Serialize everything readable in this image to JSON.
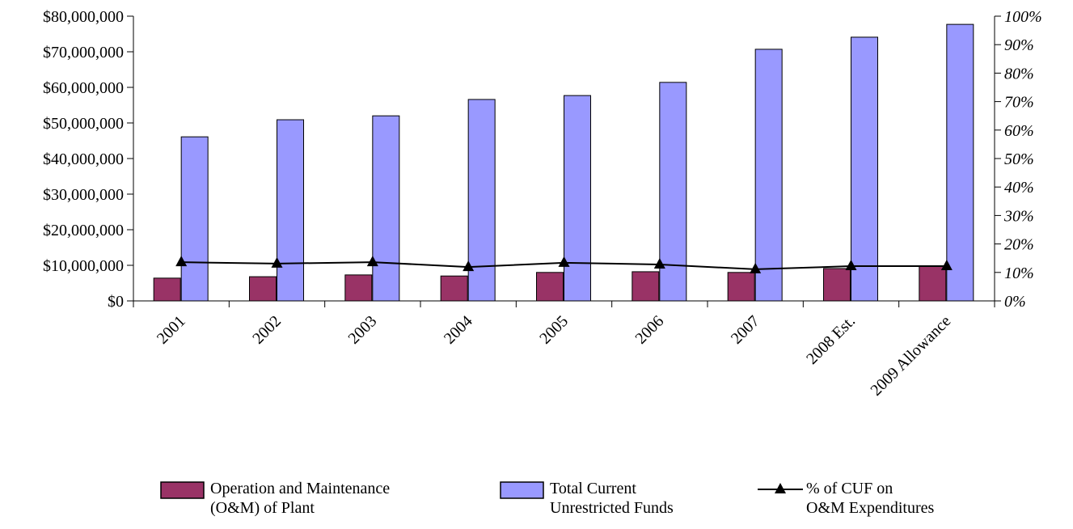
{
  "chart_data": {
    "type": "bar",
    "categories": [
      "2001",
      "2002",
      "2003",
      "2004",
      "2005",
      "2006",
      "2007",
      "2008 Est.",
      "2009 Allowance"
    ],
    "series": [
      {
        "name": "Operation and Maintenance\n(O&M) of Plant",
        "type": "bar",
        "color": "#993366",
        "values": [
          6400000,
          6800000,
          7300000,
          7000000,
          8000000,
          8200000,
          8000000,
          9100000,
          9800000
        ]
      },
      {
        "name": "Total Current\nUnrestricted Funds",
        "type": "bar",
        "color": "#9999ff",
        "values": [
          46100000,
          50900000,
          52000000,
          56600000,
          57700000,
          61400000,
          70700000,
          74100000,
          77700000
        ]
      },
      {
        "name": "% of CUF on\nO&M Expenditures",
        "type": "line",
        "color": "#000000",
        "axis": "y2",
        "values": [
          13.6,
          13.1,
          13.6,
          11.9,
          13.4,
          12.8,
          11.1,
          12.2,
          12.2
        ]
      }
    ],
    "ylim": [
      0,
      80000000
    ],
    "yticks": [
      {
        "value": 0,
        "label": "$0"
      },
      {
        "value": 10000000,
        "label": "$10,000,000"
      },
      {
        "value": 20000000,
        "label": "$20,000,000"
      },
      {
        "value": 30000000,
        "label": "$30,000,000"
      },
      {
        "value": 40000000,
        "label": "$40,000,000"
      },
      {
        "value": 50000000,
        "label": "$50,000,000"
      },
      {
        "value": 60000000,
        "label": "$60,000,000"
      },
      {
        "value": 70000000,
        "label": "$70,000,000"
      },
      {
        "value": 80000000,
        "label": "$80,000,000"
      }
    ],
    "y2lim": [
      0,
      100
    ],
    "y2ticks": [
      {
        "value": 0,
        "label": "0%"
      },
      {
        "value": 10,
        "label": "10%"
      },
      {
        "value": 20,
        "label": "20%"
      },
      {
        "value": 30,
        "label": "30%"
      },
      {
        "value": 40,
        "label": "40%"
      },
      {
        "value": 50,
        "label": "50%"
      },
      {
        "value": 60,
        "label": "60%"
      },
      {
        "value": 70,
        "label": "70%"
      },
      {
        "value": 80,
        "label": "80%"
      },
      {
        "value": 90,
        "label": "90%"
      },
      {
        "value": 100,
        "label": "100%"
      }
    ],
    "grid": false,
    "legend": "bottom"
  }
}
